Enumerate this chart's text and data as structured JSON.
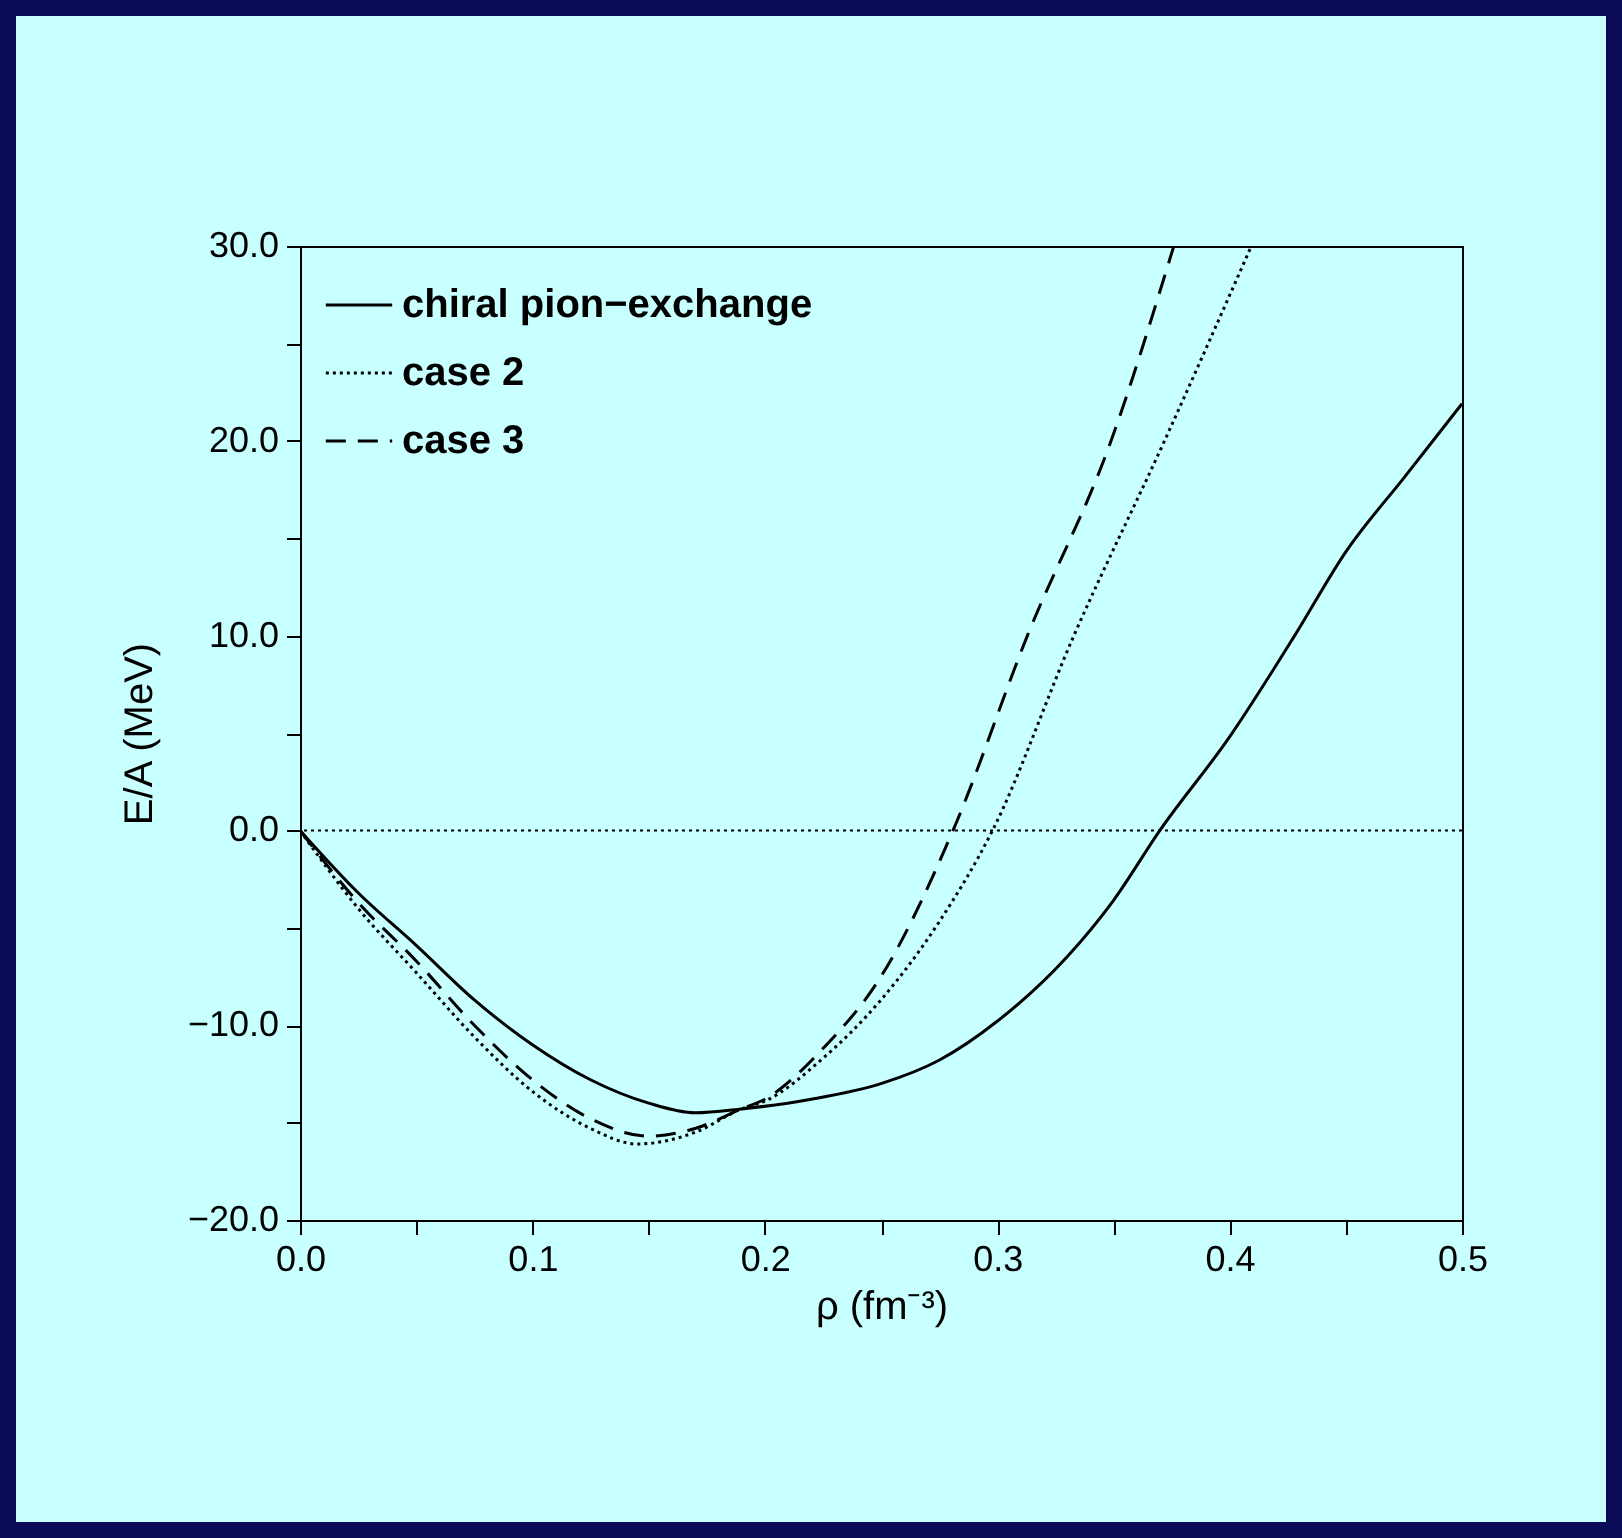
{
  "chart_data": {
    "type": "line",
    "xlabel": "ρ (fm⁻³)",
    "ylabel": "E/A (MeV)",
    "xlim": [
      0,
      0.5
    ],
    "ylim": [
      -20,
      30
    ],
    "xticks": [
      {
        "value": 0,
        "label": "0.0"
      },
      {
        "value": 0.05,
        "label": null
      },
      {
        "value": 0.1,
        "label": "0.1"
      },
      {
        "value": 0.15,
        "label": null
      },
      {
        "value": 0.2,
        "label": "0.2"
      },
      {
        "value": 0.25,
        "label": null
      },
      {
        "value": 0.3,
        "label": "0.3"
      },
      {
        "value": 0.35,
        "label": null
      },
      {
        "value": 0.4,
        "label": "0.4"
      },
      {
        "value": 0.45,
        "label": null
      },
      {
        "value": 0.5,
        "label": "0.5"
      }
    ],
    "yticks": [
      {
        "value": -20,
        "label": "−20.0"
      },
      {
        "value": -15,
        "label": null
      },
      {
        "value": -10,
        "label": "−10.0"
      },
      {
        "value": -5,
        "label": null
      },
      {
        "value": 0,
        "label": "0.0"
      },
      {
        "value": 5,
        "label": null
      },
      {
        "value": 10,
        "label": "10.0"
      },
      {
        "value": 15,
        "label": null
      },
      {
        "value": 20,
        "label": "20.0"
      },
      {
        "value": 25,
        "label": null
      },
      {
        "value": 30,
        "label": "30.0"
      }
    ],
    "grid": false,
    "legend": "top left",
    "ref_lines": [
      {
        "axis": "y",
        "value": 0,
        "line_style": "dotted",
        "color": "#000000"
      }
    ],
    "series": [
      {
        "name": "chiral pion−exchange",
        "color": "#000000",
        "line_style": "solid",
        "x": [
          0,
          0.025,
          0.05,
          0.075,
          0.1,
          0.125,
          0.15,
          0.17,
          0.19,
          0.22,
          0.25,
          0.275,
          0.3,
          0.33,
          0.35,
          0.37,
          0.4,
          0.428,
          0.45,
          0.475,
          0.5
        ],
        "values": [
          0,
          -3.2,
          -5.9,
          -8.7,
          -11.0,
          -12.8,
          -14.0,
          -14.5,
          -14.3,
          -13.8,
          -13.0,
          -11.8,
          -9.8,
          -6.5,
          -3.6,
          0,
          4.8,
          10,
          14.3,
          18.1,
          21.9
        ]
      },
      {
        "name": "case 2",
        "color": "#000000",
        "line_style": "dotted",
        "x": [
          0,
          0.025,
          0.05,
          0.075,
          0.1,
          0.125,
          0.145,
          0.17,
          0.19,
          0.2,
          0.225,
          0.25,
          0.275,
          0.298,
          0.333,
          0.372,
          0.409
        ],
        "values": [
          0,
          -4.0,
          -7.3,
          -10.6,
          -13.4,
          -15.3,
          -16.1,
          -15.5,
          -14.3,
          -13.9,
          -11.7,
          -8.7,
          -4.7,
          0,
          10,
          20,
          29.9
        ]
      },
      {
        "name": "case 3",
        "color": "#000000",
        "line_style": "dashed",
        "x": [
          0,
          0.025,
          0.05,
          0.075,
          0.1,
          0.125,
          0.15,
          0.17,
          0.19,
          0.2,
          0.225,
          0.25,
          0.281,
          0.313,
          0.349,
          0.376
        ],
        "values": [
          0,
          -3.7,
          -6.7,
          -10.0,
          -12.8,
          -14.8,
          -15.7,
          -15.3,
          -14.3,
          -13.8,
          -11.2,
          -7.5,
          0,
          10,
          20,
          30
        ]
      }
    ]
  }
}
